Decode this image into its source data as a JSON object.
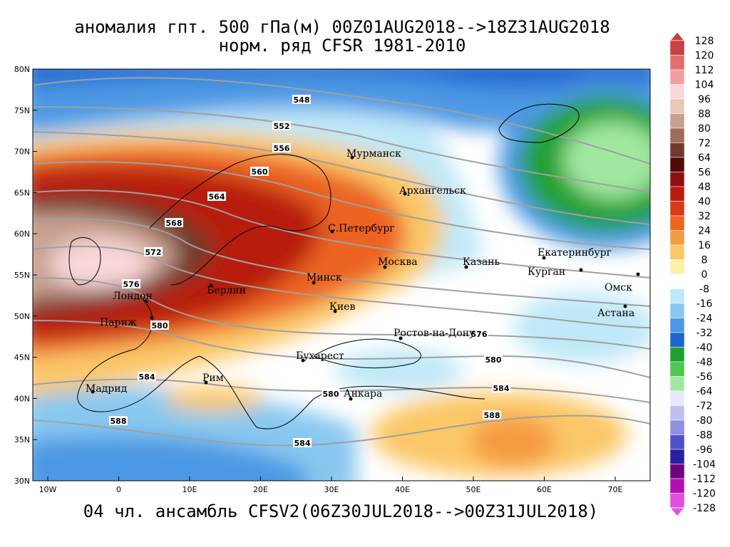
{
  "header": {
    "title": "аномалия гпт. 500 гПа(м) 00Z01AUG2018-->18Z31AUG2018",
    "subtitle": "норм. ряд CFSR 1981-2010"
  },
  "footer": "04 чл. ансамбль CFSV2(06Z30JUL2018-->00Z31JUL2018)",
  "map": {
    "lat_labels": [
      "80N",
      "75N",
      "70N",
      "65N",
      "60N",
      "55N",
      "50N",
      "45N",
      "40N",
      "35N",
      "30N"
    ],
    "lon_labels": [
      "10W",
      "0",
      "10E",
      "20E",
      "30E",
      "40E",
      "50E",
      "60E",
      "70E"
    ],
    "contour_labels": [
      "548",
      "552",
      "556",
      "560",
      "564",
      "568",
      "572",
      "576",
      "580",
      "584",
      "588",
      "584",
      "580",
      "576",
      "580",
      "584",
      "588"
    ],
    "cities": [
      "Мурманск",
      "Архангельск",
      "С.Петербург",
      "Москва",
      "Казань",
      "Екатеринбург",
      "Курган",
      "Омск",
      "Астана",
      "Минск",
      "Берлин",
      "Лондон",
      "Париж",
      "Киев",
      "Ростов-на-Дону",
      "Бухарест",
      "Рим",
      "Мадрид",
      "Анкара"
    ]
  },
  "colorbar": {
    "levels": [
      128,
      120,
      112,
      104,
      96,
      88,
      80,
      72,
      64,
      56,
      48,
      40,
      32,
      24,
      16,
      8,
      0,
      -8,
      -16,
      -24,
      -32,
      -40,
      -48,
      -56,
      -64,
      -72,
      -80,
      -88,
      -96,
      -104,
      -112,
      -120,
      -128
    ],
    "colors": [
      "#c84040",
      "#e07070",
      "#f0a0a0",
      "#f8d8d8",
      "#e8c8b8",
      "#c8a090",
      "#9c6e5c",
      "#6e3a2c",
      "#500a0a",
      "#8c1010",
      "#b81c10",
      "#d83a18",
      "#ec6420",
      "#f69a40",
      "#fbc868",
      "#fff0a8",
      "#ffffff",
      "#c0e8f8",
      "#88c8f0",
      "#4c98e4",
      "#1e64d0",
      "#20a030",
      "#50c850",
      "#a0e8a0",
      "#e8e8fc",
      "#c0c0f0",
      "#9090e0",
      "#5050c8",
      "#2820a0",
      "#700080",
      "#b010b0",
      "#e050e0"
    ]
  }
}
